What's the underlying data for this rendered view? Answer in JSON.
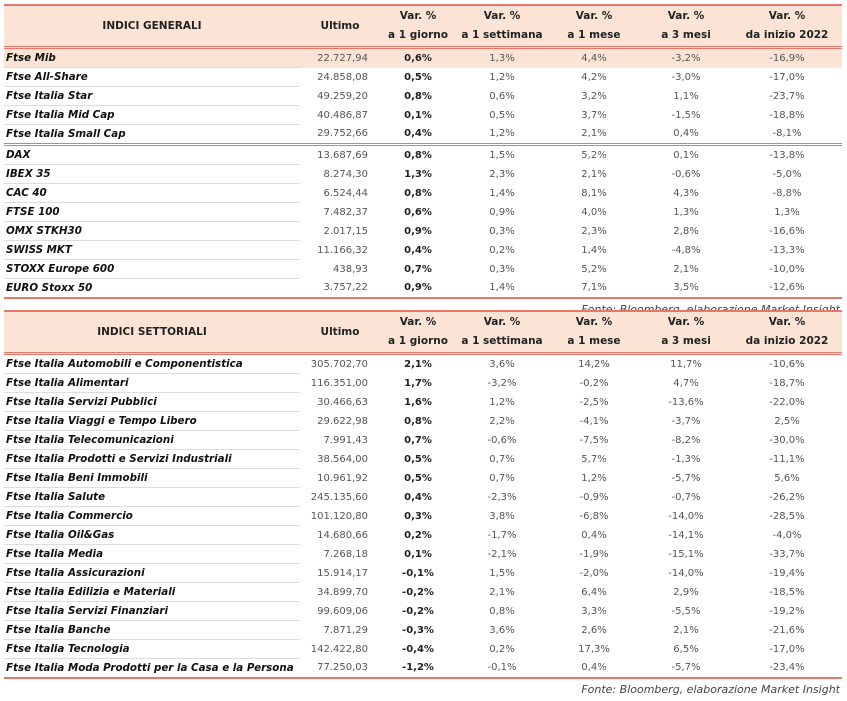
{
  "headers": {
    "name1": "INDICI GENERALI",
    "name2": "INDICI SETTORIALI",
    "ultimo": "Ultimo",
    "var": "Var. %",
    "d1": "a 1 giorno",
    "w1": "a 1 settimana",
    "m1": "a 1 mese",
    "m3": "a 3 mesi",
    "ytd": "da inizio 2022"
  },
  "source": "Fonte: Bloomberg, elaborazione Market Insight",
  "colors": {
    "header_bg": "#fbe4d5",
    "rule": "#e8776a"
  },
  "general": [
    [
      "Ftse Mib",
      "22.727,94",
      "0,6%",
      "1,3%",
      "4,4%",
      "-3,2%",
      "-16,9%"
    ],
    [
      "Ftse All-Share",
      "24.858,08",
      "0,5%",
      "1,2%",
      "4,2%",
      "-3,0%",
      "-17,0%"
    ],
    [
      "Ftse Italia Star",
      "49.259,20",
      "0,8%",
      "0,6%",
      "3,2%",
      "1,1%",
      "-23,7%"
    ],
    [
      "Ftse Italia Mid Cap",
      "40.486,87",
      "0,1%",
      "0,5%",
      "3,7%",
      "-1,5%",
      "-18,8%"
    ],
    [
      "Ftse Italia Small Cap",
      "29.752,66",
      "0,4%",
      "1,2%",
      "2,1%",
      "0,4%",
      "-8,1%"
    ],
    [
      "DAX",
      "13.687,69",
      "0,8%",
      "1,5%",
      "5,2%",
      "0,1%",
      "-13,8%"
    ],
    [
      "IBEX 35",
      "8.274,30",
      "1,3%",
      "2,3%",
      "2,1%",
      "-0,6%",
      "-5,0%"
    ],
    [
      "CAC 40",
      "6.524,44",
      "0,8%",
      "1,4%",
      "8,1%",
      "4,3%",
      "-8,8%"
    ],
    [
      "FTSE 100",
      "7.482,37",
      "0,6%",
      "0,9%",
      "4,0%",
      "1,3%",
      "1,3%"
    ],
    [
      "OMX STKH30",
      "2.017,15",
      "0,9%",
      "0,3%",
      "2,3%",
      "2,8%",
      "-16,6%"
    ],
    [
      "SWISS MKT",
      "11.166,32",
      "0,4%",
      "0,2%",
      "1,4%",
      "-4,8%",
      "-13,3%"
    ],
    [
      "STOXX Europe 600",
      "438,93",
      "0,7%",
      "0,3%",
      "5,2%",
      "2,1%",
      "-10,0%"
    ],
    [
      "EURO Stoxx 50",
      "3.757,22",
      "0,9%",
      "1,4%",
      "7,1%",
      "3,5%",
      "-12,6%"
    ]
  ],
  "sector": [
    [
      "Ftse Italia Automobili e Componentistica",
      "305.702,70",
      "2,1%",
      "3,6%",
      "14,2%",
      "11,7%",
      "-10,6%"
    ],
    [
      "Ftse Italia Alimentari",
      "116.351,00",
      "1,7%",
      "-3,2%",
      "-0,2%",
      "4,7%",
      "-18,7%"
    ],
    [
      "Ftse Italia Servizi Pubblici",
      "30.466,63",
      "1,6%",
      "1,2%",
      "-2,5%",
      "-13,6%",
      "-22,0%"
    ],
    [
      "Ftse Italia Viaggi e Tempo Libero",
      "29.622,98",
      "0,8%",
      "2,2%",
      "-4,1%",
      "-3,7%",
      "2,5%"
    ],
    [
      "Ftse Italia Telecomunicazioni",
      "7.991,43",
      "0,7%",
      "-0,6%",
      "-7,5%",
      "-8,2%",
      "-30,0%"
    ],
    [
      "Ftse Italia Prodotti e Servizi Industriali",
      "38.564,00",
      "0,5%",
      "0,7%",
      "5,7%",
      "-1,3%",
      "-11,1%"
    ],
    [
      "Ftse Italia Beni Immobili",
      "10.961,92",
      "0,5%",
      "0,7%",
      "1,2%",
      "-5,7%",
      "5,6%"
    ],
    [
      "Ftse Italia Salute",
      "245.135,60",
      "0,4%",
      "-2,3%",
      "-0,9%",
      "-0,7%",
      "-26,2%"
    ],
    [
      "Ftse Italia Commercio",
      "101.120,80",
      "0,3%",
      "3,8%",
      "-6,8%",
      "-14,0%",
      "-28,5%"
    ],
    [
      "Ftse Italia Oil&Gas",
      "14.680,66",
      "0,2%",
      "-1,7%",
      "0,4%",
      "-14,1%",
      "-4,0%"
    ],
    [
      "Ftse Italia Media",
      "7.268,18",
      "0,1%",
      "-2,1%",
      "-1,9%",
      "-15,1%",
      "-33,7%"
    ],
    [
      "Ftse Italia Assicurazioni",
      "15.914,17",
      "-0,1%",
      "1,5%",
      "-2,0%",
      "-14,0%",
      "-19,4%"
    ],
    [
      "Ftse Italia Edilizia e Materiali",
      "34.899,70",
      "-0,2%",
      "2,1%",
      "6,4%",
      "2,9%",
      "-18,5%"
    ],
    [
      "Ftse Italia Servizi Finanziari",
      "99.609,06",
      "-0,2%",
      "0,8%",
      "3,3%",
      "-5,5%",
      "-19,2%"
    ],
    [
      "Ftse Italia Banche",
      "7.871,29",
      "-0,3%",
      "3,6%",
      "2,6%",
      "2,1%",
      "-21,6%"
    ],
    [
      "Ftse Italia Tecnologia",
      "142.422,80",
      "-0,4%",
      "0,2%",
      "17,3%",
      "6,5%",
      "-17,0%"
    ],
    [
      "Ftse Italia Moda Prodotti per la Casa e la Persona",
      "77.250,03",
      "-1,2%",
      "-0,1%",
      "0,4%",
      "-5,7%",
      "-23,4%"
    ]
  ]
}
